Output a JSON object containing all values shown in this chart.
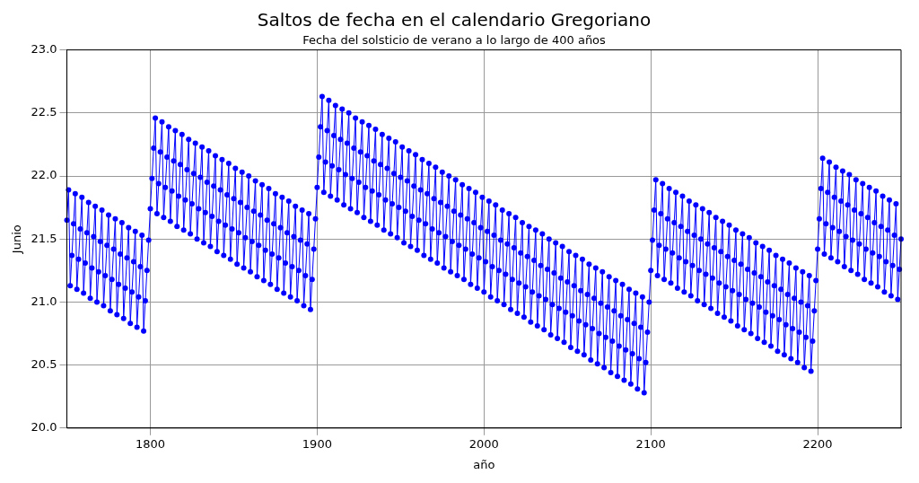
{
  "chart_data": {
    "type": "line",
    "title": "Saltos de fecha en el calendario Gregoriano",
    "subtitle": "Fecha del solsticio de verano a lo largo de 400 años",
    "xlabel": "año",
    "ylabel": "Junio",
    "xlim": [
      1750,
      2250
    ],
    "xticks": [
      1800,
      1900,
      2000,
      2100,
      2200
    ],
    "ylim": [
      20,
      23
    ],
    "yticks": [
      {
        "value": 20,
        "label": "20.0"
      },
      {
        "value": 20.5,
        "label": "20.5"
      },
      {
        "value": 21,
        "label": "21.0"
      },
      {
        "value": 21.5,
        "label": "21.5"
      },
      {
        "value": 22,
        "label": "22.0"
      },
      {
        "value": 22.5,
        "label": "22.5"
      },
      {
        "value": 23,
        "label": "23.0"
      }
    ],
    "grid": true,
    "legend": false,
    "marker": "circle",
    "line_style": "solid",
    "x": [
      1750,
      1751,
      1752,
      1753,
      1754,
      1755,
      1756,
      1757,
      1758,
      1759,
      1760,
      1761,
      1762,
      1763,
      1764,
      1765,
      1766,
      1767,
      1768,
      1769,
      1770,
      1771,
      1772,
      1773,
      1774,
      1775,
      1776,
      1777,
      1778,
      1779,
      1780,
      1781,
      1782,
      1783,
      1784,
      1785,
      1786,
      1787,
      1788,
      1789,
      1790,
      1791,
      1792,
      1793,
      1794,
      1795,
      1796,
      1797,
      1798,
      1799,
      1800,
      1801,
      1802,
      1803,
      1804,
      1805,
      1806,
      1807,
      1808,
      1809,
      1810,
      1811,
      1812,
      1813,
      1814,
      1815,
      1816,
      1817,
      1818,
      1819,
      1820,
      1821,
      1822,
      1823,
      1824,
      1825,
      1826,
      1827,
      1828,
      1829,
      1830,
      1831,
      1832,
      1833,
      1834,
      1835,
      1836,
      1837,
      1838,
      1839,
      1840,
      1841,
      1842,
      1843,
      1844,
      1845,
      1846,
      1847,
      1848,
      1849,
      1850,
      1851,
      1852,
      1853,
      1854,
      1855,
      1856,
      1857,
      1858,
      1859,
      1860,
      1861,
      1862,
      1863,
      1864,
      1865,
      1866,
      1867,
      1868,
      1869,
      1870,
      1871,
      1872,
      1873,
      1874,
      1875,
      1876,
      1877,
      1878,
      1879,
      1880,
      1881,
      1882,
      1883,
      1884,
      1885,
      1886,
      1887,
      1888,
      1889,
      1890,
      1891,
      1892,
      1893,
      1894,
      1895,
      1896,
      1897,
      1898,
      1899,
      1900,
      1901,
      1902,
      1903,
      1904,
      1905,
      1906,
      1907,
      1908,
      1909,
      1910,
      1911,
      1912,
      1913,
      1914,
      1915,
      1916,
      1917,
      1918,
      1919,
      1920,
      1921,
      1922,
      1923,
      1924,
      1925,
      1926,
      1927,
      1928,
      1929,
      1930,
      1931,
      1932,
      1933,
      1934,
      1935,
      1936,
      1937,
      1938,
      1939,
      1940,
      1941,
      1942,
      1943,
      1944,
      1945,
      1946,
      1947,
      1948,
      1949,
      1950,
      1951,
      1952,
      1953,
      1954,
      1955,
      1956,
      1957,
      1958,
      1959,
      1960,
      1961,
      1962,
      1963,
      1964,
      1965,
      1966,
      1967,
      1968,
      1969,
      1970,
      1971,
      1972,
      1973,
      1974,
      1975,
      1976,
      1977,
      1978,
      1979,
      1980,
      1981,
      1982,
      1983,
      1984,
      1985,
      1986,
      1987,
      1988,
      1989,
      1990,
      1991,
      1992,
      1993,
      1994,
      1995,
      1996,
      1997,
      1998,
      1999,
      2000,
      2001,
      2002,
      2003,
      2004,
      2005,
      2006,
      2007,
      2008,
      2009,
      2010,
      2011,
      2012,
      2013,
      2014,
      2015,
      2016,
      2017,
      2018,
      2019,
      2020,
      2021,
      2022,
      2023,
      2024,
      2025,
      2026,
      2027,
      2028,
      2029,
      2030,
      2031,
      2032,
      2033,
      2034,
      2035,
      2036,
      2037,
      2038,
      2039,
      2040,
      2041,
      2042,
      2043,
      2044,
      2045,
      2046,
      2047,
      2048,
      2049,
      2050,
      2051,
      2052,
      2053,
      2054,
      2055,
      2056,
      2057,
      2058,
      2059,
      2060,
      2061,
      2062,
      2063,
      2064,
      2065,
      2066,
      2067,
      2068,
      2069,
      2070,
      2071,
      2072,
      2073,
      2074,
      2075,
      2076,
      2077,
      2078,
      2079,
      2080,
      2081,
      2082,
      2083,
      2084,
      2085,
      2086,
      2087,
      2088,
      2089,
      2090,
      2091,
      2092,
      2093,
      2094,
      2095,
      2096,
      2097,
      2098,
      2099,
      2100,
      2101,
      2102,
      2103,
      2104,
      2105,
      2106,
      2107,
      2108,
      2109,
      2110,
      2111,
      2112,
      2113,
      2114,
      2115,
      2116,
      2117,
      2118,
      2119,
      2120,
      2121,
      2122,
      2123,
      2124,
      2125,
      2126,
      2127,
      2128,
      2129,
      2130,
      2131,
      2132,
      2133,
      2134,
      2135,
      2136,
      2137,
      2138,
      2139,
      2140,
      2141,
      2142,
      2143,
      2144,
      2145,
      2146,
      2147,
      2148,
      2149,
      2150,
      2151,
      2152,
      2153,
      2154,
      2155,
      2156,
      2157,
      2158,
      2159,
      2160,
      2161,
      2162,
      2163,
      2164,
      2165,
      2166,
      2167,
      2168,
      2169,
      2170,
      2171,
      2172,
      2173,
      2174,
      2175,
      2176,
      2177,
      2178,
      2179,
      2180,
      2181,
      2182,
      2183,
      2184,
      2185,
      2186,
      2187,
      2188,
      2189,
      2190,
      2191,
      2192,
      2193,
      2194,
      2195,
      2196,
      2197,
      2198,
      2199,
      2200,
      2201,
      2202,
      2203,
      2204,
      2205,
      2206,
      2207,
      2208,
      2209,
      2210,
      2211,
      2212,
      2213,
      2214,
      2215,
      2216,
      2217,
      2218,
      2219,
      2220,
      2221,
      2222,
      2223,
      2224,
      2225,
      2226,
      2227,
      2228,
      2229,
      2230,
      2231,
      2232,
      2233,
      2234,
      2235,
      2236,
      2237,
      2238,
      2239,
      2240,
      2241,
      2242,
      2243,
      2244,
      2245,
      2246,
      2247,
      2248,
      2249,
      2250
    ],
    "series": [
      {
        "color": "#0000ff",
        "values": [
          21.65,
          21.89,
          21.13,
          21.37,
          21.62,
          21.86,
          21.1,
          21.34,
          21.58,
          21.83,
          21.07,
          21.31,
          21.55,
          21.79,
          21.03,
          21.27,
          21.52,
          21.76,
          21.0,
          21.24,
          21.48,
          21.73,
          20.97,
          21.21,
          21.45,
          21.69,
          20.93,
          21.18,
          21.42,
          21.66,
          20.9,
          21.14,
          21.38,
          21.63,
          20.87,
          21.11,
          21.35,
          21.59,
          20.83,
          21.08,
          21.32,
          21.56,
          20.8,
          21.04,
          21.28,
          21.53,
          20.77,
          21.01,
          21.25,
          21.49,
          21.74,
          21.98,
          22.22,
          22.46,
          21.7,
          21.94,
          22.19,
          22.43,
          21.67,
          21.91,
          22.15,
          22.39,
          21.64,
          21.88,
          22.12,
          22.36,
          21.6,
          21.84,
          22.09,
          22.33,
          21.57,
          21.81,
          22.05,
          22.29,
          21.54,
          21.78,
          22.02,
          22.26,
          21.5,
          21.74,
          21.99,
          22.23,
          21.47,
          21.71,
          21.95,
          22.2,
          21.44,
          21.68,
          21.92,
          22.16,
          21.4,
          21.64,
          21.89,
          22.13,
          21.37,
          21.61,
          21.85,
          22.1,
          21.34,
          21.58,
          21.82,
          22.06,
          21.3,
          21.55,
          21.79,
          22.03,
          21.27,
          21.51,
          21.75,
          22.0,
          21.24,
          21.48,
          21.72,
          21.96,
          21.2,
          21.45,
          21.69,
          21.93,
          21.17,
          21.41,
          21.65,
          21.9,
          21.14,
          21.38,
          21.62,
          21.86,
          21.1,
          21.35,
          21.59,
          21.83,
          21.07,
          21.31,
          21.55,
          21.8,
          21.04,
          21.28,
          21.52,
          21.76,
          21.01,
          21.25,
          21.49,
          21.73,
          20.97,
          21.21,
          21.46,
          21.7,
          20.94,
          21.18,
          21.42,
          21.66,
          21.91,
          22.15,
          22.39,
          22.63,
          21.87,
          22.11,
          22.36,
          22.6,
          21.84,
          22.08,
          22.32,
          22.56,
          21.81,
          22.05,
          22.29,
          22.53,
          21.77,
          22.01,
          22.26,
          22.5,
          21.74,
          21.98,
          22.22,
          22.46,
          21.71,
          21.95,
          22.19,
          22.43,
          21.67,
          21.91,
          22.16,
          22.4,
          21.64,
          21.88,
          22.12,
          22.37,
          21.61,
          21.85,
          22.09,
          22.33,
          21.57,
          21.81,
          22.06,
          22.3,
          21.54,
          21.78,
          22.02,
          22.27,
          21.51,
          21.75,
          21.99,
          22.23,
          21.47,
          21.72,
          21.96,
          22.2,
          21.44,
          21.68,
          21.92,
          22.17,
          21.41,
          21.65,
          21.89,
          22.13,
          21.37,
          21.62,
          21.86,
          22.1,
          21.34,
          21.58,
          21.82,
          22.07,
          21.31,
          21.55,
          21.79,
          22.03,
          21.27,
          21.52,
          21.76,
          22.0,
          21.24,
          21.48,
          21.72,
          21.97,
          21.21,
          21.45,
          21.69,
          21.93,
          21.18,
          21.42,
          21.66,
          21.9,
          21.14,
          21.38,
          21.63,
          21.87,
          21.11,
          21.35,
          21.59,
          21.83,
          21.08,
          21.32,
          21.56,
          21.8,
          21.04,
          21.28,
          21.53,
          21.77,
          21.01,
          21.25,
          21.49,
          21.73,
          20.98,
          21.22,
          21.46,
          21.7,
          20.94,
          21.18,
          21.43,
          21.67,
          20.91,
          21.15,
          21.39,
          21.63,
          20.88,
          21.12,
          21.36,
          21.6,
          20.84,
          21.08,
          21.33,
          21.57,
          20.81,
          21.05,
          21.29,
          21.54,
          20.78,
          21.02,
          21.26,
          21.5,
          20.74,
          20.98,
          21.23,
          21.47,
          20.71,
          20.95,
          21.19,
          21.44,
          20.68,
          20.92,
          21.16,
          21.4,
          20.64,
          20.89,
          21.13,
          21.37,
          20.61,
          20.85,
          21.09,
          21.34,
          20.58,
          20.82,
          21.06,
          21.3,
          20.54,
          20.79,
          21.03,
          21.27,
          20.51,
          20.75,
          20.99,
          21.24,
          20.48,
          20.72,
          20.96,
          21.2,
          20.44,
          20.69,
          20.93,
          21.17,
          20.41,
          20.65,
          20.89,
          21.14,
          20.38,
          20.62,
          20.86,
          21.1,
          20.35,
          20.59,
          20.83,
          21.07,
          20.31,
          20.55,
          20.8,
          21.04,
          20.28,
          20.52,
          20.76,
          21.0,
          21.25,
          21.49,
          21.73,
          21.97,
          21.21,
          21.45,
          21.7,
          21.94,
          21.18,
          21.42,
          21.66,
          21.9,
          21.15,
          21.39,
          21.63,
          21.87,
          21.11,
          21.35,
          21.6,
          21.84,
          21.08,
          21.32,
          21.56,
          21.8,
          21.05,
          21.29,
          21.53,
          21.77,
          21.01,
          21.25,
          21.5,
          21.74,
          20.98,
          21.22,
          21.46,
          21.71,
          20.95,
          21.19,
          21.43,
          21.67,
          20.91,
          21.15,
          21.4,
          21.64,
          20.88,
          21.12,
          21.36,
          21.61,
          20.85,
          21.09,
          21.33,
          21.57,
          20.81,
          21.06,
          21.3,
          21.54,
          20.78,
          21.02,
          21.26,
          21.51,
          20.75,
          20.99,
          21.23,
          21.47,
          20.71,
          20.96,
          21.2,
          21.44,
          20.68,
          20.92,
          21.16,
          21.41,
          20.65,
          20.89,
          21.13,
          21.37,
          20.61,
          20.86,
          21.1,
          21.34,
          20.58,
          20.82,
          21.06,
          21.31,
          20.55,
          20.79,
          21.03,
          21.27,
          20.52,
          20.76,
          21.0,
          21.24,
          20.48,
          20.72,
          20.97,
          21.21,
          20.45,
          20.69,
          20.93,
          21.17,
          21.42,
          21.66,
          21.9,
          22.14,
          21.38,
          21.62,
          21.87,
          22.11,
          21.35,
          21.59,
          21.83,
          22.07,
          21.32,
          21.56,
          21.8,
          22.04,
          21.28,
          21.52,
          21.77,
          22.01,
          21.25,
          21.49,
          21.73,
          21.97,
          21.22,
          21.46,
          21.7,
          21.94,
          21.18,
          21.42,
          21.67,
          21.91,
          21.15,
          21.39,
          21.63,
          21.88,
          21.12,
          21.36,
          21.6,
          21.84,
          21.08,
          21.32,
          21.57,
          21.81,
          21.05,
          21.29,
          21.53,
          21.78,
          21.02,
          21.26,
          21.5
        ]
      }
    ]
  }
}
